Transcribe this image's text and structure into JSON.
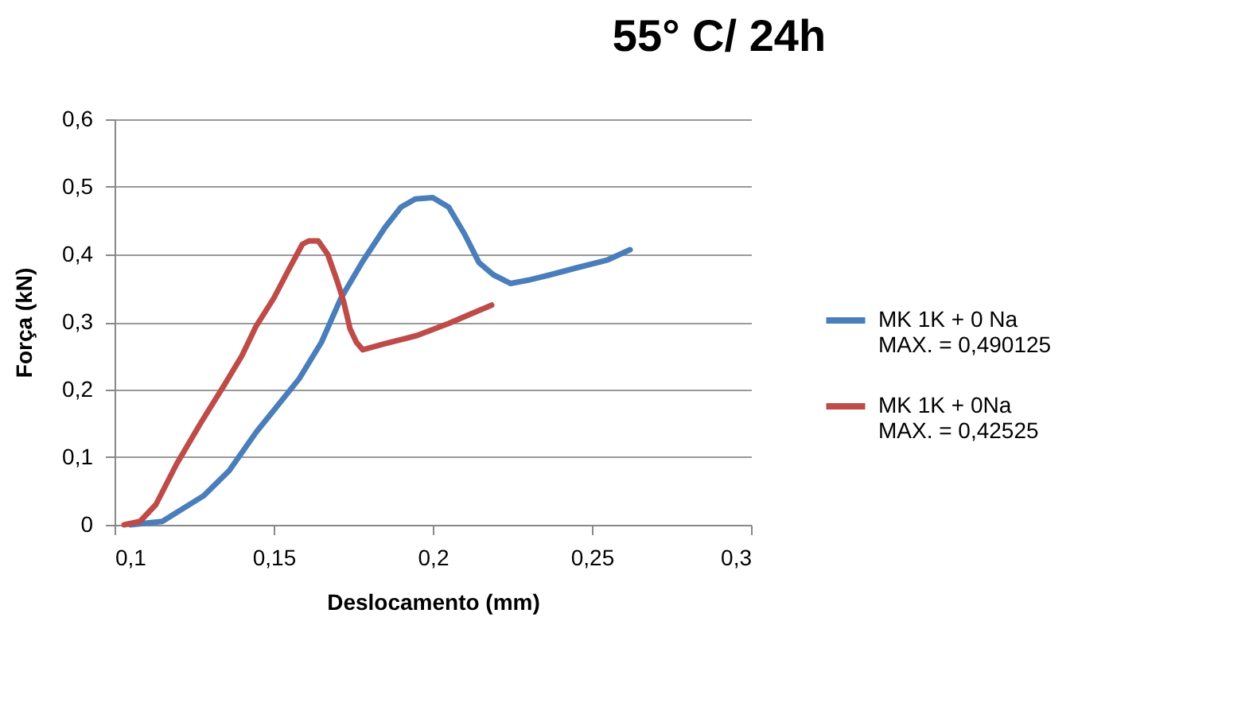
{
  "chart_data": {
    "type": "line",
    "title": "55° C/ 24h",
    "xlabel": "Deslocamento (mm)",
    "ylabel": "Força (kN)",
    "xlim": [
      0.1,
      0.3
    ],
    "xticks": [
      {
        "value": 0.1,
        "label": "0,1"
      },
      {
        "value": 0.15,
        "label": "0,15"
      },
      {
        "value": 0.2,
        "label": "0,2"
      },
      {
        "value": 0.25,
        "label": "0,25"
      },
      {
        "value": 0.3,
        "label": "0,3"
      }
    ],
    "ylim": [
      0,
      0.6
    ],
    "yticks": [
      {
        "value": 0,
        "label": "0"
      },
      {
        "value": 0.1,
        "label": "0,1"
      },
      {
        "value": 0.2,
        "label": "0,2"
      },
      {
        "value": 0.3,
        "label": "0,3"
      },
      {
        "value": 0.4,
        "label": "0,4"
      },
      {
        "value": 0.5,
        "label": "0,5"
      },
      {
        "value": 0.6,
        "label": "0,6"
      }
    ],
    "grid": "y",
    "legend": "right",
    "series": [
      {
        "name": "MK 1K + 0 Na\nMAX. = 0,490125",
        "color": "#4a7ebb",
        "x": [
          0.105,
          0.115,
          0.128,
          0.136,
          0.1445,
          0.151,
          0.158,
          0.165,
          0.171,
          0.178,
          0.185,
          0.19,
          0.1945,
          0.2,
          0.205,
          0.21,
          0.2145,
          0.219,
          0.2245,
          0.23,
          0.237,
          0.245,
          0.255,
          0.262
        ],
        "values": [
          0,
          0.005,
          0.043,
          0.08,
          0.137,
          0.175,
          0.216,
          0.27,
          0.334,
          0.39,
          0.44,
          0.47,
          0.482,
          0.484,
          0.47,
          0.43,
          0.388,
          0.37,
          0.357,
          0.362,
          0.37,
          0.38,
          0.392,
          0.407
        ]
      },
      {
        "name": "MK 1K + 0Na\nMAX. = 0,42525",
        "color": "#be4b48",
        "x": [
          0.103,
          0.108,
          0.113,
          0.1195,
          0.127,
          0.1345,
          0.14,
          0.1445,
          0.15,
          0.155,
          0.159,
          0.161,
          0.164,
          0.167,
          0.17,
          0.172,
          0.174,
          0.176,
          0.178,
          0.185,
          0.195,
          0.205,
          0.212,
          0.2185
        ],
        "values": [
          0,
          0.005,
          0.03,
          0.09,
          0.15,
          0.207,
          0.25,
          0.294,
          0.335,
          0.38,
          0.415,
          0.42,
          0.42,
          0.4,
          0.36,
          0.33,
          0.29,
          0.27,
          0.259,
          0.268,
          0.28,
          0.298,
          0.312,
          0.325
        ]
      }
    ]
  }
}
